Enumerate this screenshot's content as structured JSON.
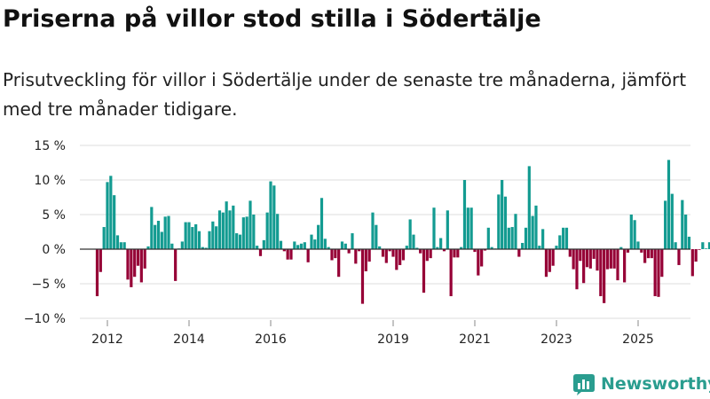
{
  "title": "Priserna på villor stod stilla i Södertälje",
  "subtitle": "Prisutveckling för villor i Södertälje under de senaste tre månaderna, jämfört med tre månader tidigare.",
  "brand": "Newsworthy",
  "colors": {
    "positive": "#139b91",
    "negative": "#960036",
    "grid": "#dddddd",
    "zero": "#333333"
  },
  "chart_data": {
    "type": "bar",
    "title": "Priserna på villor stod stilla i Södertälje",
    "subtitle": "Prisutveckling för villor i Södertälje under de senaste tre månaderna, jämfört med tre månader tidigare.",
    "xlabel": "",
    "ylabel": "",
    "ylim": [
      -10,
      15
    ],
    "y_ticks": [
      15,
      10,
      5,
      0,
      -5,
      -10
    ],
    "y_tick_labels": [
      "15 %",
      "10 %",
      "5 %",
      "0 %",
      "−5 %",
      "−10 %"
    ],
    "x_ticks": [
      2012,
      2014,
      2016,
      2019,
      2021,
      2023,
      2025
    ],
    "x_tick_labels": [
      "2012",
      "2014",
      "2016",
      "2019",
      "2021",
      "2023",
      "2025"
    ],
    "grid": true,
    "end_label": "0 %",
    "x_start": 2011.75,
    "x_step": 0.08333,
    "values": [
      -6.8,
      -3.3,
      3.2,
      9.7,
      10.6,
      7.8,
      2.0,
      1.0,
      1.0,
      -4.4,
      -5.5,
      -4.0,
      -2.4,
      -4.8,
      -2.8,
      0.4,
      6.1,
      3.5,
      4.1,
      2.5,
      4.7,
      4.8,
      0.8,
      -4.6,
      0.1,
      1.1,
      3.9,
      3.9,
      3.2,
      3.6,
      2.6,
      0.3,
      0.2,
      2.6,
      4.0,
      3.3,
      5.6,
      5.3,
      6.9,
      5.6,
      6.3,
      2.3,
      2.1,
      4.6,
      4.7,
      7.0,
      5.0,
      0.5,
      -1.0,
      1.3,
      5.3,
      9.8,
      9.2,
      5.1,
      1.2,
      -0.3,
      -1.5,
      -1.5,
      1.1,
      0.6,
      0.8,
      1.0,
      -1.9,
      2.1,
      1.4,
      3.5,
      7.4,
      1.5,
      0.3,
      -1.6,
      -1.3,
      -4.0,
      1.1,
      0.8,
      -0.6,
      2.3,
      -2.1,
      -0.3,
      -7.9,
      -3.2,
      -1.8,
      5.3,
      3.5,
      0.4,
      -1.1,
      -2.0,
      -0.3,
      -1.1,
      -3.0,
      -2.3,
      -1.6,
      0.5,
      4.3,
      2.1,
      0.2,
      -0.6,
      -6.3,
      -1.7,
      -1.3,
      6.0,
      0.3,
      1.6,
      -0.3,
      5.6,
      -6.8,
      -1.2,
      -1.2,
      0.3,
      10.0,
      6.0,
      6.0,
      -0.4,
      -3.8,
      -2.5,
      -0.2,
      3.1,
      0.3,
      0.1,
      7.9,
      10.0,
      7.6,
      3.1,
      3.2,
      5.1,
      -1.1,
      0.9,
      3.1,
      12.0,
      4.8,
      6.3,
      0.5,
      2.9,
      -4.0,
      -3.3,
      -2.4,
      0.5,
      2.0,
      3.1,
      3.1,
      -1.1,
      -2.9,
      -5.8,
      -1.7,
      -4.9,
      -2.6,
      -2.8,
      -1.4,
      -3.1,
      -6.8,
      -7.8,
      -2.9,
      -2.8,
      -2.8,
      -4.5,
      0.3,
      -4.8,
      -0.5,
      5.0,
      4.2,
      1.1,
      -0.5,
      -2.0,
      -1.3,
      -1.3,
      -6.8,
      -6.9,
      -4.0,
      7.0,
      12.9,
      8.0,
      1.0,
      -2.3,
      7.1,
      5.0,
      1.8,
      -3.9,
      -1.8,
      -0.1,
      1.0,
      0.1,
      1.0,
      -1.0,
      1.0,
      1.0,
      0.0
    ]
  }
}
